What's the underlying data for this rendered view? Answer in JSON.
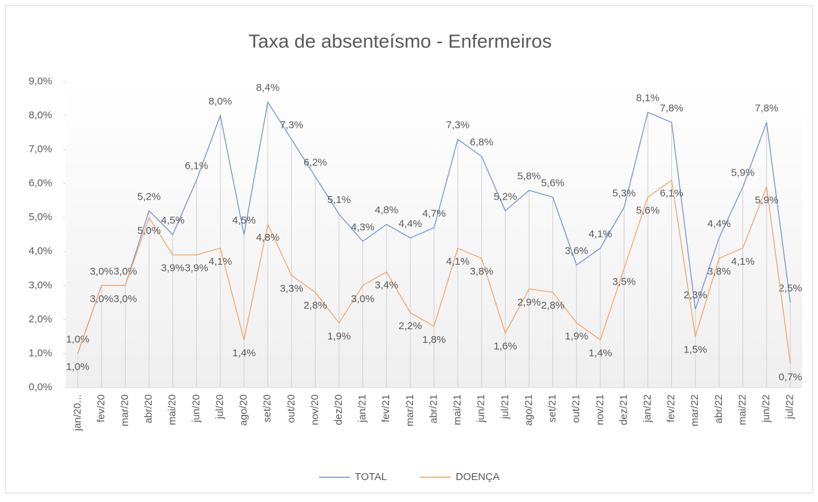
{
  "chart_data": {
    "type": "line",
    "title": "Taxa de absenteísmo - Enfermeiros",
    "categories": [
      "jan/20...",
      "fev/20",
      "mar/20",
      "abr/20",
      "mai/20",
      "jun/20",
      "jul/20",
      "ago/20",
      "set/20",
      "out/20",
      "nov/20",
      "dez/20",
      "jan/21",
      "fev/21",
      "mar/21",
      "abr/21",
      "mai/21",
      "jun/21",
      "jul/21",
      "ago/21",
      "set/21",
      "out/21",
      "nov/21",
      "dez/21",
      "jan/22",
      "fev/22",
      "mar/22",
      "abr/22",
      "mai/22",
      "jun/22",
      "jul/22"
    ],
    "series": [
      {
        "name": "TOTAL",
        "color": "#6f93d2",
        "values": [
          1.0,
          3.0,
          3.0,
          5.2,
          4.5,
          6.1,
          8.0,
          4.5,
          8.4,
          7.3,
          6.2,
          5.1,
          4.3,
          4.8,
          4.4,
          4.7,
          7.3,
          6.8,
          5.2,
          5.8,
          5.6,
          3.6,
          4.1,
          5.3,
          8.1,
          7.8,
          2.3,
          4.4,
          5.9,
          7.8,
          2.5
        ],
        "value_labels": [
          "1,0%",
          "3,0%",
          "3,0%",
          "5,2%",
          "4,5%",
          "6,1%",
          "8,0%",
          "4,5%",
          "8,4%",
          "7,3%",
          "6,2%",
          "5,1%",
          "4,3%",
          "4,8%",
          "4,4%",
          "4,7%",
          "7,3%",
          "6,8%",
          "5,2%",
          "5,8%",
          "5,6%",
          "3,6%",
          "4,1%",
          "5,3%",
          "8,1%",
          "7,8%",
          "2,3%",
          "4,4%",
          "5,9%",
          "7,8%",
          "2,5%"
        ]
      },
      {
        "name": "DOENÇA",
        "color": "#f0a466",
        "values": [
          1.0,
          3.0,
          3.0,
          5.0,
          3.9,
          3.9,
          4.1,
          1.4,
          4.8,
          3.3,
          2.8,
          1.9,
          3.0,
          3.4,
          2.2,
          1.8,
          4.1,
          3.8,
          1.6,
          2.9,
          2.8,
          1.9,
          1.4,
          3.5,
          5.6,
          6.1,
          1.5,
          3.8,
          4.1,
          5.9,
          0.7
        ],
        "value_labels": [
          "1,0%",
          "3,0%",
          "3,0%",
          "5,0%",
          "3,9%",
          "3,9%",
          "4,1%",
          "1,4%",
          "4,8%",
          "3,3%",
          "2,8%",
          "1,9%",
          "3,0%",
          "3,4%",
          "2,2%",
          "1,8%",
          "4,1%",
          "3,8%",
          "1,6%",
          "2,9%",
          "2,8%",
          "1,9%",
          "1,4%",
          "3,5%",
          "5,6%",
          "6,1%",
          "1,5%",
          "3,8%",
          "4,1%",
          "5,9%",
          "0,7%"
        ]
      }
    ],
    "ylim": [
      0,
      9
    ],
    "yticks": [
      {
        "value": 0,
        "label": "0,0%"
      },
      {
        "value": 1,
        "label": "1,0%"
      },
      {
        "value": 2,
        "label": "2,0%"
      },
      {
        "value": 3,
        "label": "3,0%"
      },
      {
        "value": 4,
        "label": "4,0%"
      },
      {
        "value": 5,
        "label": "5,0%"
      },
      {
        "value": 6,
        "label": "6,0%"
      },
      {
        "value": 7,
        "label": "7,0%"
      },
      {
        "value": 8,
        "label": "8,0%"
      },
      {
        "value": 9,
        "label": "9,0%"
      }
    ],
    "legend": "bottom"
  }
}
